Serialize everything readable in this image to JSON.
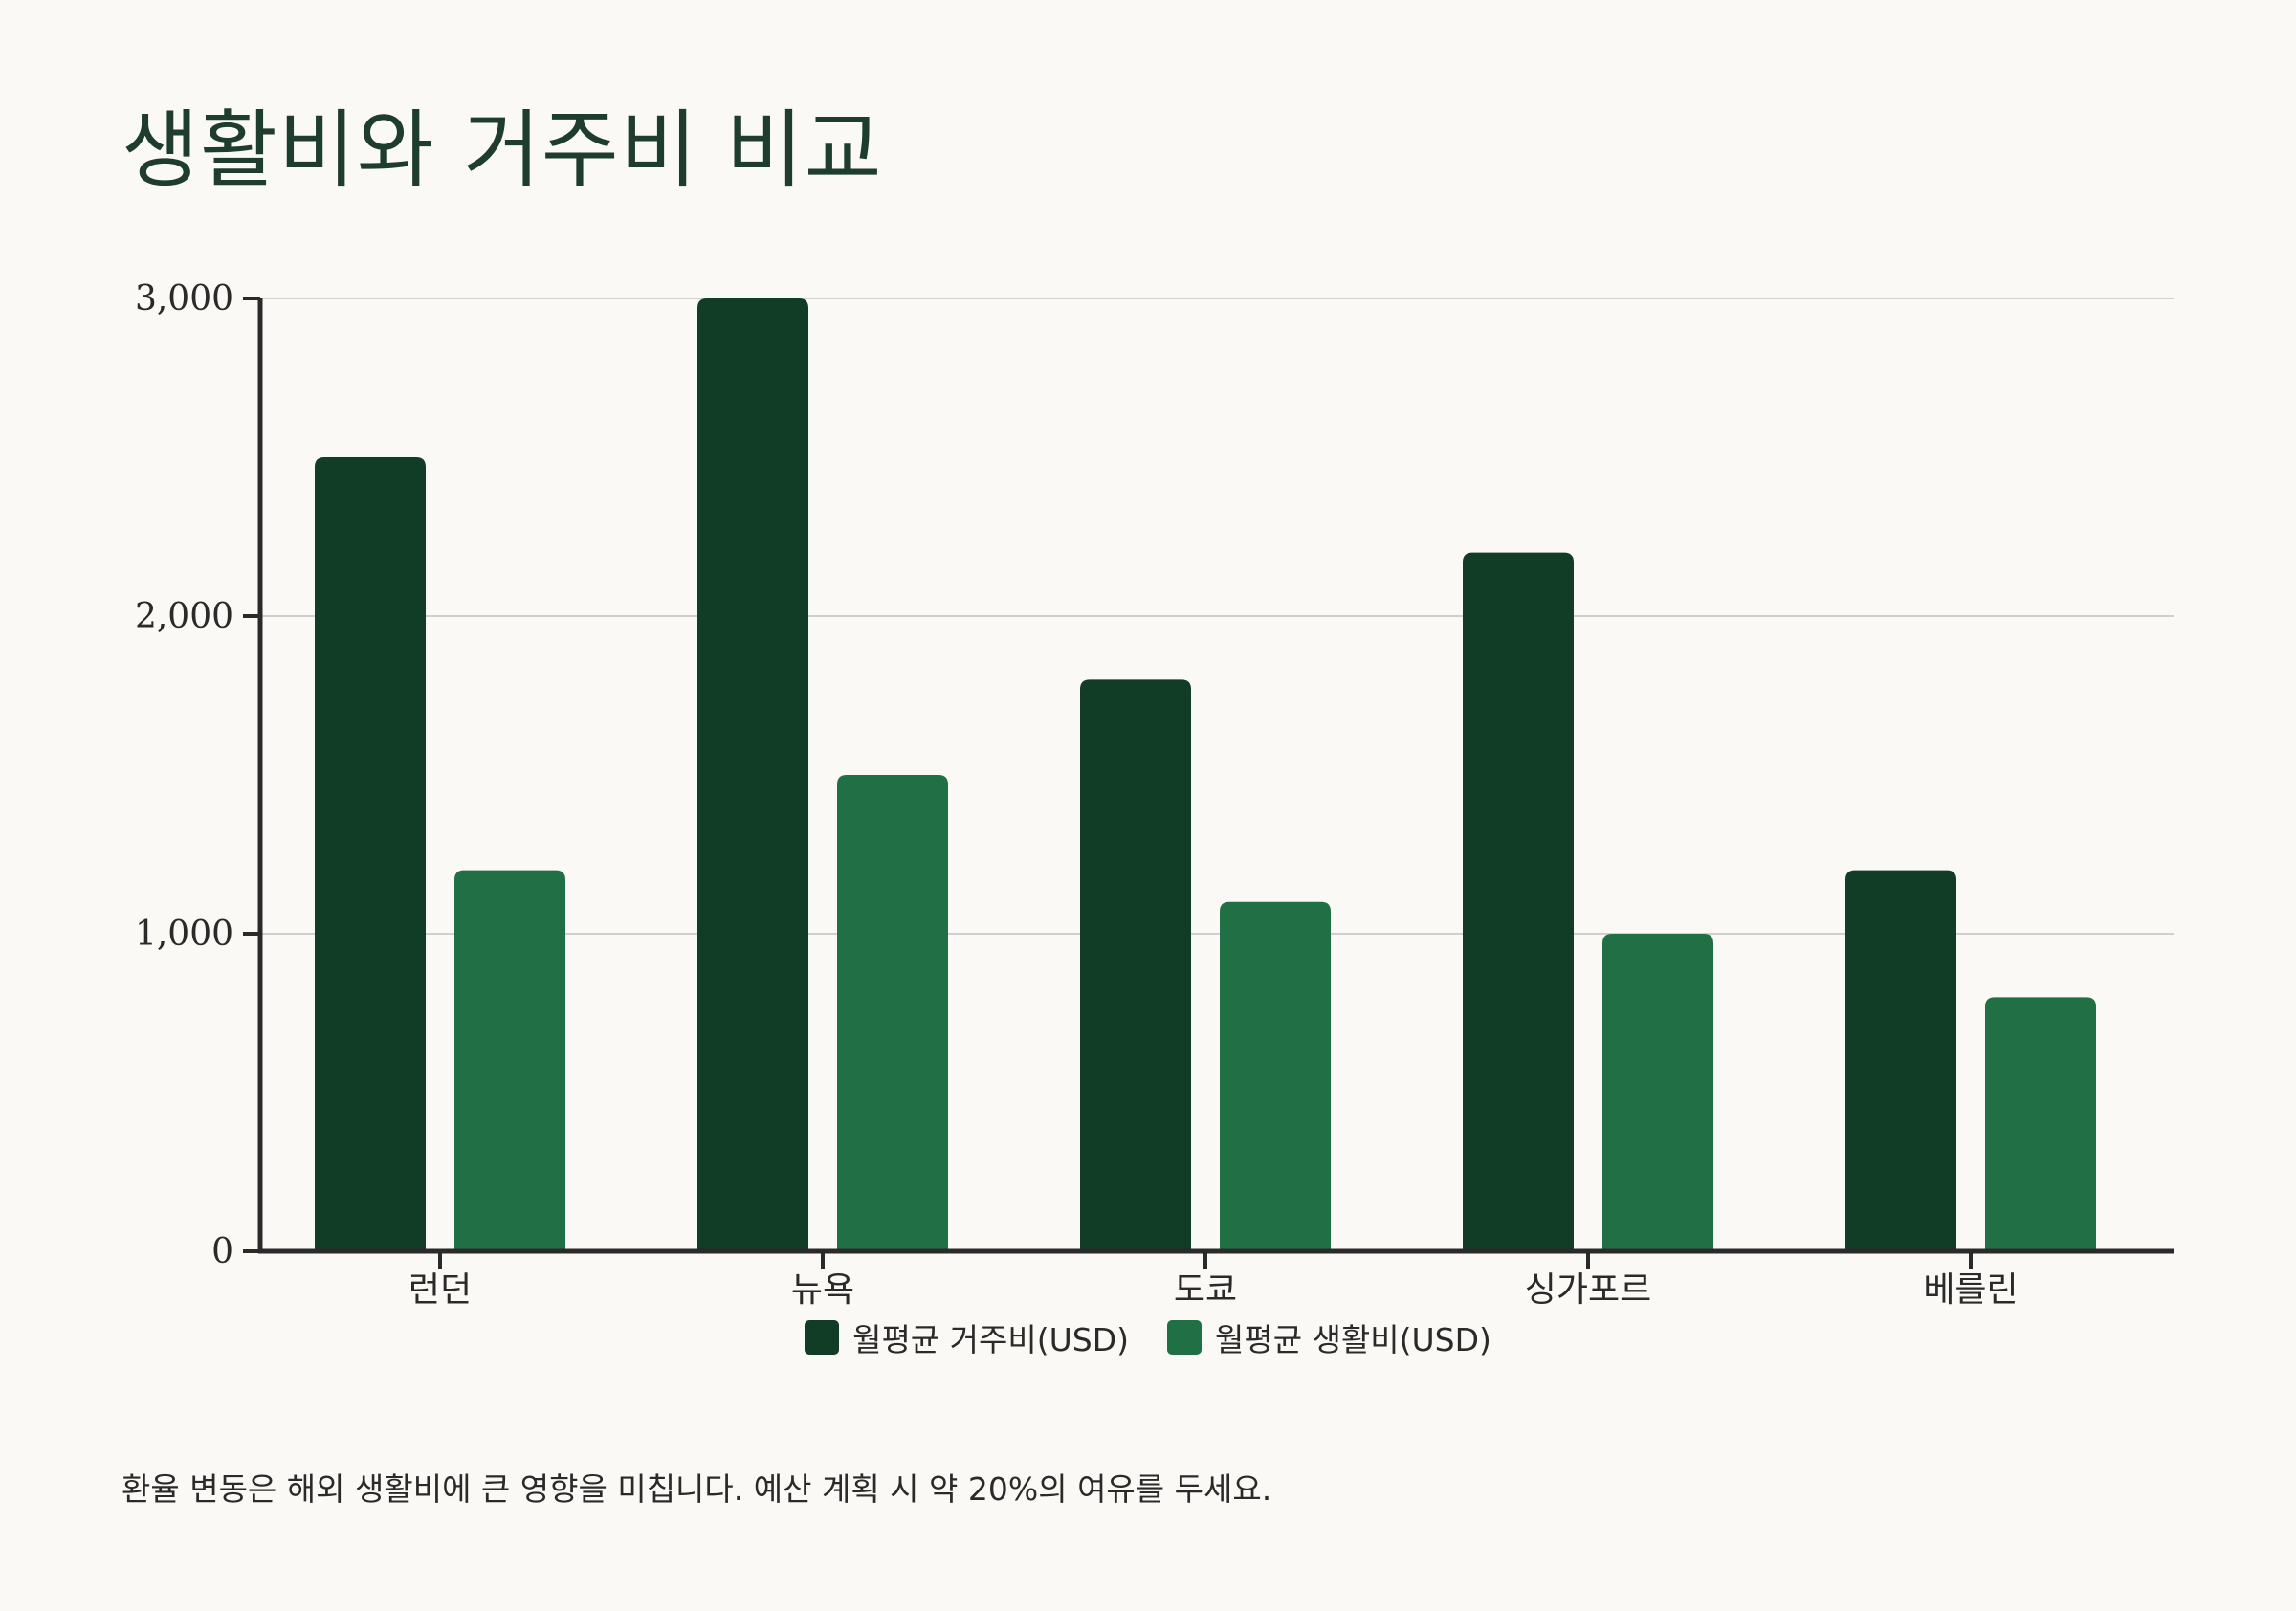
{
  "page": {
    "title": "생활비와 거주비 비교",
    "note": "환율 변동은 해외 생활비에 큰 영향을 미칩니다. 예산 계획 시 약 20%의 여유를 두세요."
  },
  "colors": {
    "housing": "#113c26",
    "living": "#217045",
    "axis": "#2a2a2a",
    "grid": "#cfcfcf"
  },
  "chart_data": {
    "type": "bar",
    "title": "생활비와 거주비 비교",
    "categories": [
      "런던",
      "뉴욕",
      "도쿄",
      "싱가포르",
      "베를린"
    ],
    "series": [
      {
        "name": "월평균 거주비(USD)",
        "values": [
          2500,
          3000,
          1800,
          2200,
          1200
        ]
      },
      {
        "name": "월평균 생활비(USD)",
        "values": [
          1200,
          1500,
          1100,
          1000,
          800
        ]
      }
    ],
    "yticks": [
      "0",
      "1,000",
      "2,000",
      "3,000"
    ],
    "ytick_values": [
      0,
      1000,
      2000,
      3000
    ],
    "ylim": [
      0,
      3000
    ],
    "xlabel": "",
    "ylabel": "",
    "grid": true,
    "legend": "bottom-center"
  }
}
